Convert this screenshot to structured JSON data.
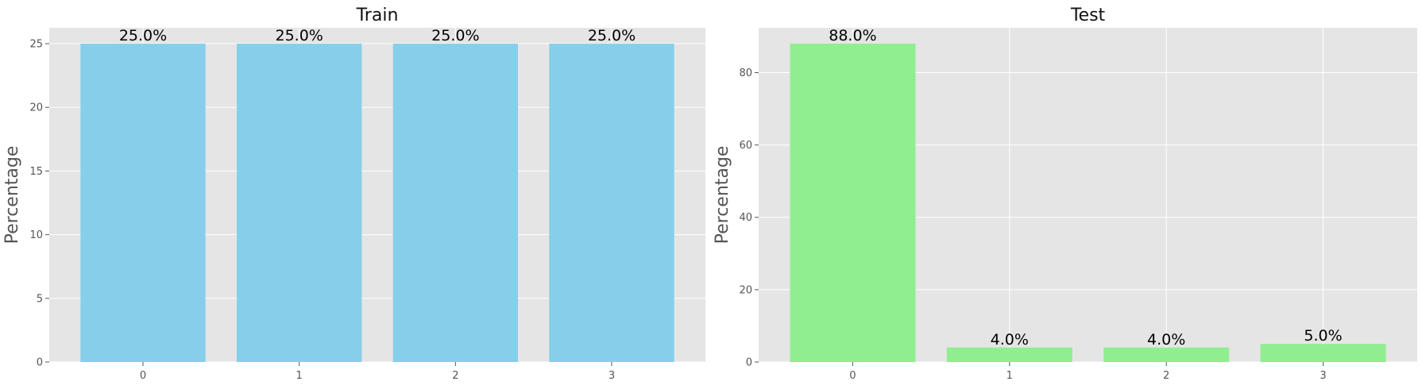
{
  "chart_data": [
    {
      "type": "bar",
      "title": "Train",
      "xlabel": "",
      "ylabel": "Percentage",
      "categories": [
        "0",
        "1",
        "2",
        "3"
      ],
      "values": [
        25.0,
        25.0,
        25.0,
        25.0
      ],
      "data_labels": [
        "25.0%",
        "25.0%",
        "25.0%",
        "25.0%"
      ],
      "ylim": [
        0,
        26.25
      ],
      "yticks": [
        0,
        5,
        10,
        15,
        20,
        25
      ],
      "bar_color": "#87ceeb",
      "grid": true
    },
    {
      "type": "bar",
      "title": "Test",
      "xlabel": "",
      "ylabel": "Percentage",
      "categories": [
        "0",
        "1",
        "2",
        "3"
      ],
      "values": [
        88.0,
        4.0,
        4.0,
        5.0
      ],
      "data_labels": [
        "88.0%",
        "4.0%",
        "4.0%",
        "5.0%"
      ],
      "ylim": [
        0,
        92.4
      ],
      "yticks": [
        0,
        20,
        40,
        60,
        80
      ],
      "bar_color": "#90ee90",
      "grid": true
    }
  ]
}
